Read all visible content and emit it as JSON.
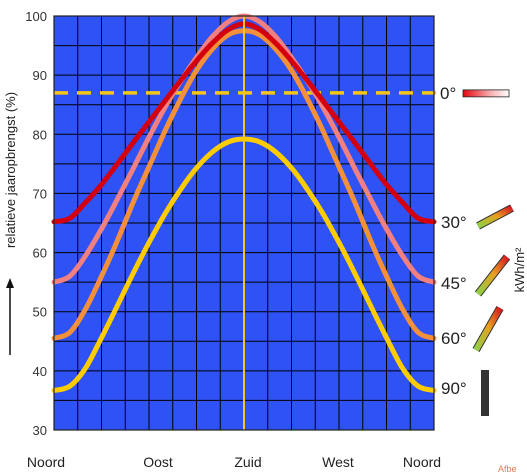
{
  "chart_data": {
    "type": "line",
    "ylabel": "relatieve jaaropbrengst (%)",
    "ylim": [
      30,
      100
    ],
    "yticks": [
      30,
      40,
      50,
      60,
      70,
      80,
      90,
      100
    ],
    "categories": [
      "Noord",
      "Oost",
      "Zuid",
      "West",
      "Noord"
    ],
    "x": [
      -180,
      -165,
      -150,
      -135,
      -120,
      -105,
      -90,
      -75,
      -60,
      -45,
      -30,
      -15,
      0,
      15,
      30,
      45,
      60,
      75,
      90,
      105,
      120,
      135,
      150,
      165,
      180
    ],
    "grid": true,
    "background_color": "#2f52f5",
    "series": [
      {
        "name": "0°",
        "color": "#f5c518",
        "dashed": true,
        "values": [
          87,
          87,
          87,
          87,
          87,
          87,
          87,
          87,
          87,
          87,
          87,
          87,
          87,
          87,
          87,
          87,
          87,
          87,
          87,
          87,
          87,
          87,
          87,
          87,
          87
        ]
      },
      {
        "name": "30°",
        "color": "#d4000e",
        "values": [
          65.2,
          65.8,
          68.5,
          71.5,
          75,
          78.6,
          82.1,
          85.6,
          89.1,
          92.4,
          95.4,
          97.7,
          98.7,
          97.7,
          95.4,
          92.4,
          89.1,
          85.6,
          82.1,
          78.6,
          75,
          71.5,
          68.5,
          65.8,
          65.2
        ]
      },
      {
        "name": "45°",
        "color": "#f28080",
        "values": [
          55,
          56,
          59.5,
          64,
          69,
          74.2,
          79.5,
          84.5,
          89,
          93,
          96.5,
          99,
          100,
          99,
          96.5,
          93,
          89,
          84.5,
          79.5,
          74.2,
          69,
          64,
          59.5,
          56,
          55
        ]
      },
      {
        "name": "60°",
        "color": "#f5903a",
        "values": [
          45.5,
          46.5,
          50.5,
          56,
          62,
          68.5,
          74.5,
          80.5,
          86,
          90.8,
          94.4,
          96.8,
          97.5,
          96.8,
          94.4,
          90.8,
          86,
          80.5,
          74.5,
          68.5,
          62,
          56,
          50.5,
          46.5,
          45.5
        ]
      },
      {
        "name": "90°",
        "color": "#ffcc00",
        "values": [
          36.7,
          37.4,
          40.5,
          45.6,
          51,
          56.5,
          61.7,
          66.5,
          70.7,
          74.3,
          77,
          78.7,
          79.2,
          78.7,
          77,
          74.3,
          70.7,
          66.5,
          61.7,
          56.5,
          51,
          45.6,
          40.5,
          37.4,
          36.7
        ]
      }
    ],
    "annotations": {
      "south_line": "Zuid",
      "legend_unit": "kWh/m²",
      "angles": [
        "0°",
        "30°",
        "45°",
        "60°",
        "90°"
      ]
    },
    "credit": "Afbe"
  }
}
